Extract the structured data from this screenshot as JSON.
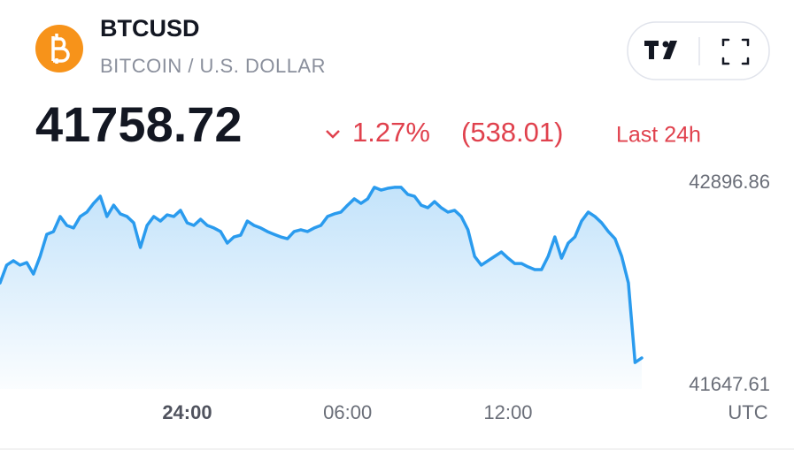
{
  "header": {
    "symbol": "BTCUSD",
    "name": "BITCOIN / U.S. DOLLAR",
    "price": "41758.72",
    "change_percent": "1.27%",
    "change": "(538.01)",
    "period": "Last 24h"
  },
  "chart_data": {
    "type": "line",
    "color": "#2a9bee",
    "categories": [
      null,
      null,
      null,
      null,
      null,
      null,
      null,
      null,
      null,
      null,
      null,
      null,
      null,
      null,
      null,
      null,
      null,
      null,
      null,
      null,
      null,
      null,
      null,
      null,
      null,
      null,
      null,
      null,
      "24:00",
      null,
      null,
      null,
      null,
      null,
      null,
      null,
      null,
      null,
      null,
      null,
      null,
      null,
      null,
      null,
      null,
      null,
      null,
      null,
      null,
      null,
      null,
      null,
      "06:00",
      null,
      null,
      null,
      null,
      null,
      null,
      null,
      null,
      null,
      null,
      null,
      null,
      null,
      null,
      null,
      null,
      null,
      null,
      null,
      null,
      null,
      null,
      null,
      "12:00",
      null,
      null,
      null,
      null,
      null,
      null,
      null,
      null,
      null,
      null,
      null,
      null,
      null,
      null,
      null,
      null,
      null,
      null,
      null,
      null
    ],
    "values": [
      42280,
      42390,
      42417,
      42390,
      42406,
      42335,
      42444,
      42580,
      42597,
      42690,
      42635,
      42619,
      42690,
      42717,
      42771,
      42815,
      42690,
      42760,
      42706,
      42690,
      42651,
      42499,
      42635,
      42690,
      42662,
      42700,
      42690,
      42728,
      42651,
      42635,
      42673,
      42635,
      42619,
      42597,
      42526,
      42564,
      42575,
      42662,
      42635,
      42619,
      42597,
      42580,
      42564,
      42553,
      42597,
      42608,
      42597,
      42619,
      42635,
      42690,
      42706,
      42717,
      42760,
      42799,
      42771,
      42799,
      42870,
      42853,
      42864,
      42870,
      42870,
      42826,
      42815,
      42760,
      42744,
      42782,
      42744,
      42717,
      42728,
      42690,
      42608,
      42444,
      42390,
      42417,
      42444,
      42471,
      42433,
      42400,
      42400,
      42379,
      42362,
      42362,
      42444,
      42564,
      42433,
      42526,
      42564,
      42662,
      42717,
      42690,
      42651,
      42597,
      42553,
      42444,
      42280,
      41789,
      41817
    ],
    "ylim": [
      41647.61,
      42896.86
    ],
    "yticks": [
      42896.86,
      41647.61
    ],
    "xlabel": "UTC",
    "grid": false
  }
}
